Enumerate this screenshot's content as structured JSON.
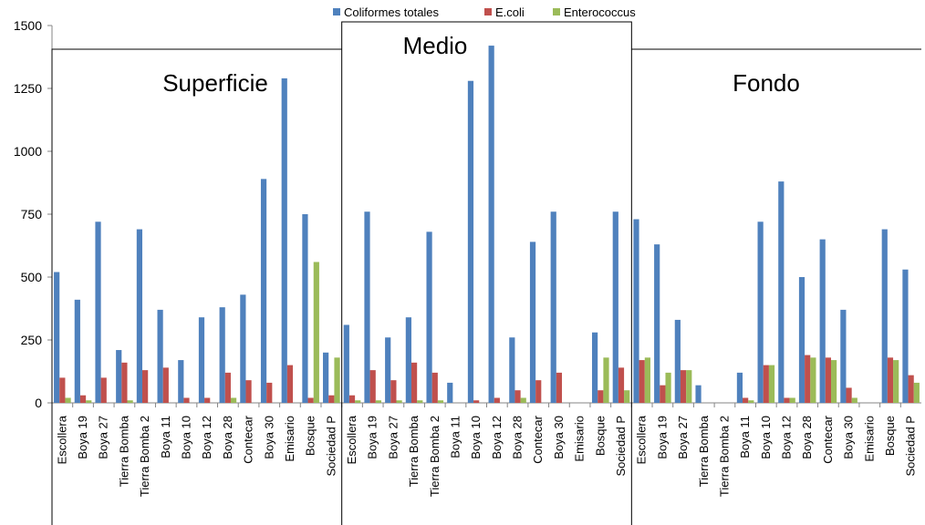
{
  "chart_data": {
    "type": "bar",
    "ylim": [
      0,
      1500
    ],
    "yticks": [
      0,
      250,
      500,
      750,
      1000,
      1250,
      1500
    ],
    "legend_position": "top",
    "grid": false,
    "groups": [
      {
        "title": "Superficie",
        "categories": [
          "Escollera",
          "Boya 19",
          "Boya 27",
          "Tierra Bomba",
          "Tierra Bomba 2",
          "Boya 11",
          "Boya 10",
          "Boya 12",
          "Boya 28",
          "Contecar",
          "Boya 30",
          "Emisario",
          "Bosque",
          "Sociedad P"
        ],
        "series": [
          {
            "name": "Coliformes totales",
            "color": "#4F81BD",
            "values": [
              520,
              410,
              720,
              210,
              690,
              370,
              170,
              340,
              380,
              430,
              890,
              1290,
              750,
              200
            ]
          },
          {
            "name": "E.coli",
            "color": "#C0504D",
            "values": [
              100,
              30,
              100,
              160,
              130,
              140,
              20,
              20,
              120,
              90,
              80,
              150,
              20,
              30
            ]
          },
          {
            "name": "Enterococcus",
            "color": "#9BBB59",
            "values": [
              20,
              10,
              0,
              10,
              0,
              0,
              0,
              0,
              20,
              0,
              0,
              0,
              560,
              180
            ]
          }
        ]
      },
      {
        "title": "Medio",
        "categories": [
          "Escollera",
          "Boya 19",
          "Boya 27",
          "Tierra Bomba",
          "Tierra Bomba 2",
          "Boya 11",
          "Boya 10",
          "Boya 12",
          "Boya 28",
          "Contecar",
          "Boya 30",
          "Emisario",
          "Bosque",
          "Sociedad P"
        ],
        "series": [
          {
            "name": "Coliformes totales",
            "color": "#4F81BD",
            "values": [
              310,
              760,
              260,
              340,
              680,
              80,
              1280,
              1420,
              260,
              640,
              760,
              0,
              280,
              760
            ]
          },
          {
            "name": "E.coli",
            "color": "#C0504D",
            "values": [
              30,
              130,
              90,
              160,
              120,
              0,
              10,
              20,
              50,
              90,
              120,
              0,
              50,
              140
            ]
          },
          {
            "name": "Enterococcus",
            "color": "#9BBB59",
            "values": [
              10,
              10,
              10,
              10,
              10,
              0,
              0,
              0,
              20,
              0,
              0,
              0,
              180,
              50
            ]
          }
        ]
      },
      {
        "title": "Fondo",
        "categories": [
          "Escollera",
          "Boya 19",
          "Boya 27",
          "Tierra Bomba",
          "Tierra Bomba 2",
          "Boya 11",
          "Boya 10",
          "Boya 12",
          "Boya 28",
          "Contecar",
          "Boya 30",
          "Emisario",
          "Bosque",
          "Sociedad P"
        ],
        "series": [
          {
            "name": "Coliformes totales",
            "color": "#4F81BD",
            "values": [
              730,
              630,
              330,
              70,
              0,
              120,
              720,
              880,
              500,
              650,
              370,
              0,
              690,
              530
            ]
          },
          {
            "name": "E.coli",
            "color": "#C0504D",
            "values": [
              170,
              70,
              130,
              0,
              0,
              20,
              150,
              20,
              190,
              180,
              60,
              0,
              180,
              110
            ]
          },
          {
            "name": "Enterococcus",
            "color": "#9BBB59",
            "values": [
              180,
              120,
              130,
              0,
              0,
              10,
              150,
              20,
              180,
              170,
              20,
              0,
              170,
              80
            ]
          }
        ]
      }
    ]
  }
}
